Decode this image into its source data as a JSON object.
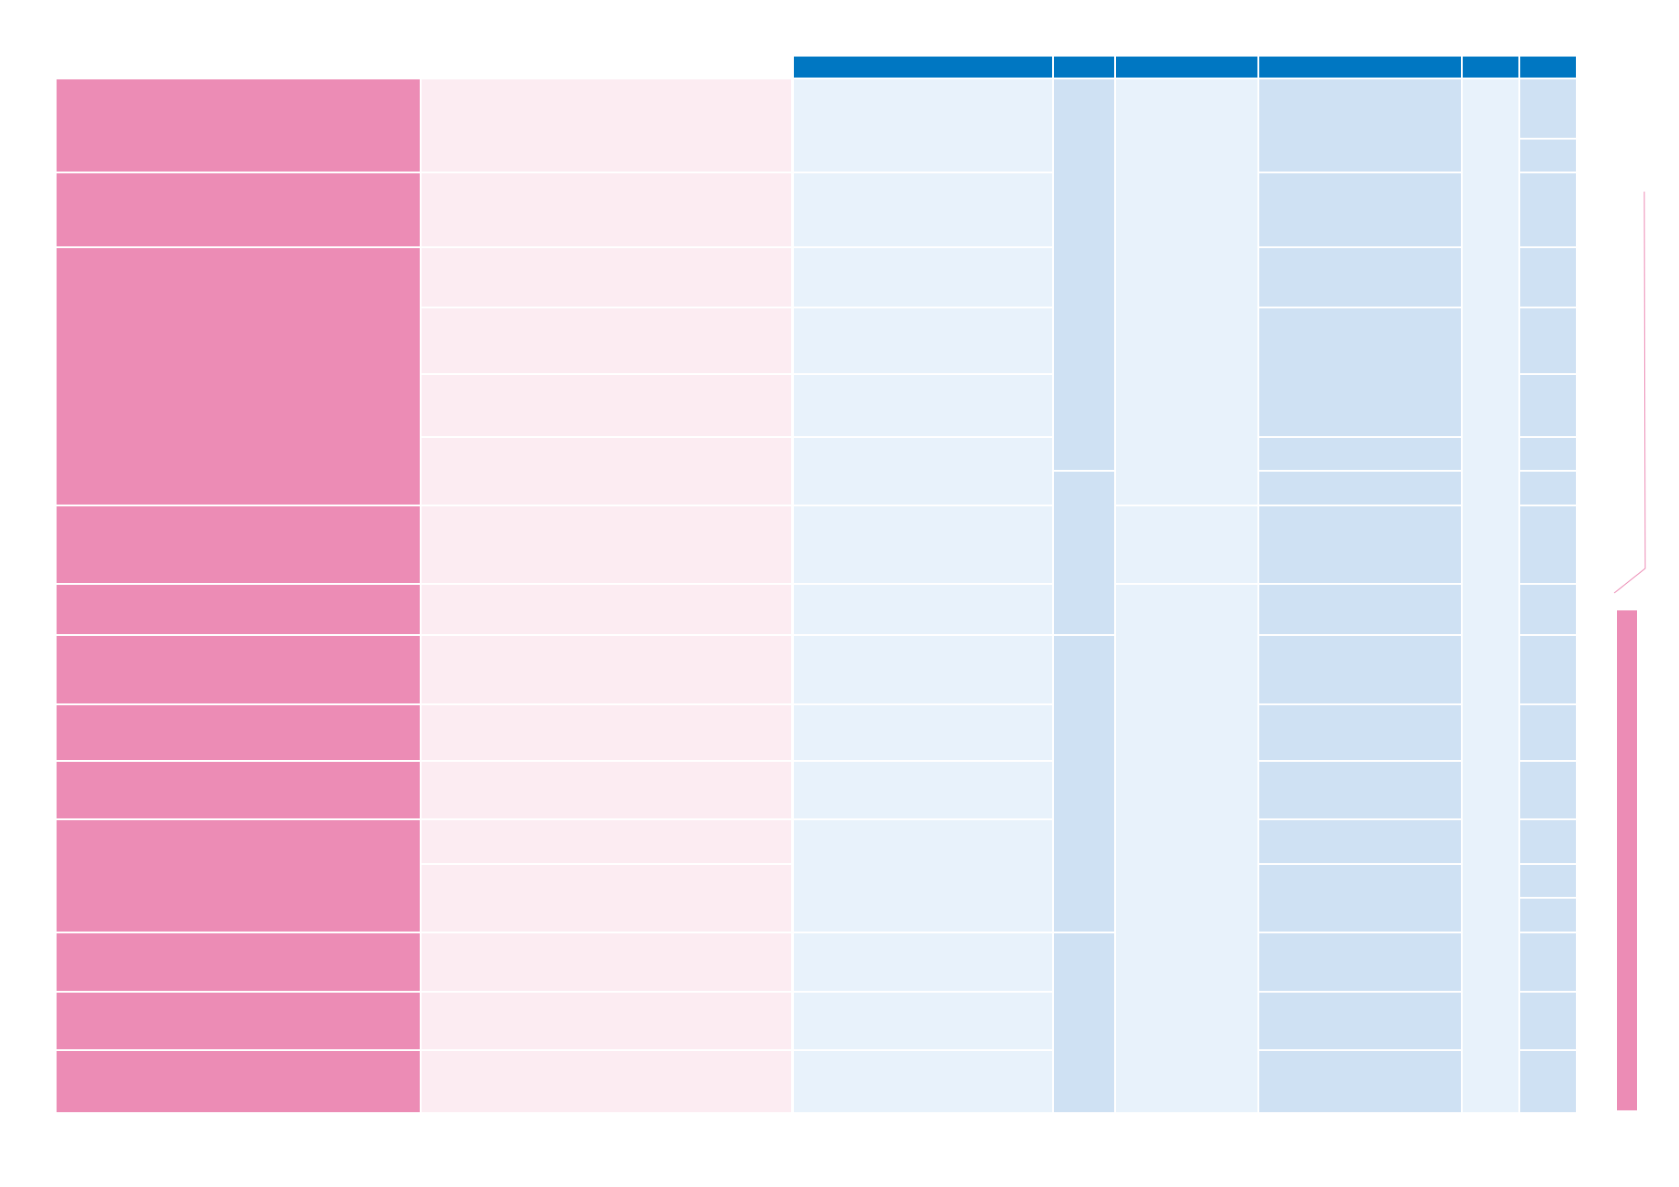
{
  "colors": {
    "header_blue": "#0077c2",
    "pink_dark": "#ec8cb5",
    "pink_light": "#fcecf2",
    "blue_light": "#e8f2fb",
    "blue_mid": "#cfe1f3",
    "divider": "#ffffff"
  },
  "table": {
    "header_cells": [
      "",
      "",
      "",
      "",
      "",
      ""
    ],
    "row_count": 15,
    "rows_in_pink_category_column": 13
  },
  "side_marker": {
    "bracket_color": "#ec8cb5",
    "bar_color": "#ec8cb5"
  }
}
